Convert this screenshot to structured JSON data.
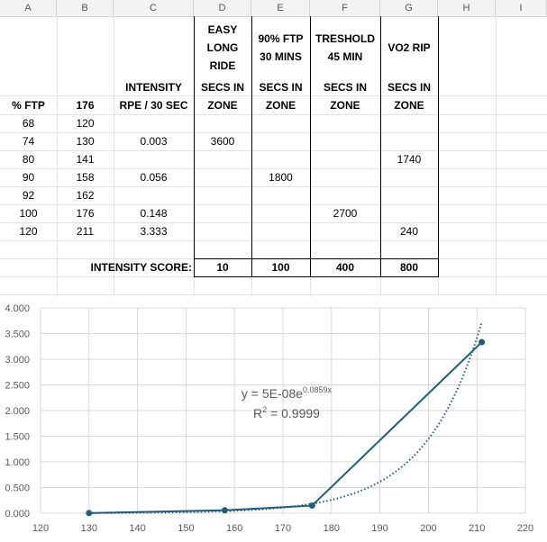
{
  "columns": [
    "A",
    "B",
    "C",
    "D",
    "E",
    "F",
    "G",
    "H",
    "I"
  ],
  "headers": {
    "d": [
      "EASY",
      "LONG",
      "RIDE"
    ],
    "e": [
      "90% FTP",
      "30 MINS"
    ],
    "f": [
      "TRESHOLD",
      "45 MIN"
    ],
    "g": "VO2 RIP",
    "a": "% FTP",
    "b": "176",
    "c1": "INTENSITY",
    "c2": "RPE / 30 SEC",
    "secs1": "SECS IN",
    "secs2": "ZONE"
  },
  "rows": [
    {
      "a": "68",
      "b": "120",
      "c": "",
      "d": "",
      "e": "",
      "f": "",
      "g": ""
    },
    {
      "a": "74",
      "b": "130",
      "c": "0.003",
      "d": "3600",
      "e": "",
      "f": "",
      "g": ""
    },
    {
      "a": "80",
      "b": "141",
      "c": "",
      "d": "",
      "e": "",
      "f": "",
      "g": "1740"
    },
    {
      "a": "90",
      "b": "158",
      "c": "0.056",
      "d": "",
      "e": "1800",
      "f": "",
      "g": ""
    },
    {
      "a": "92",
      "b": "162",
      "c": "",
      "d": "",
      "e": "",
      "f": "",
      "g": ""
    },
    {
      "a": "100",
      "b": "176",
      "c": "0.148",
      "d": "",
      "e": "",
      "f": "2700",
      "g": ""
    },
    {
      "a": "120",
      "b": "211",
      "c": "3.333",
      "d": "",
      "e": "",
      "f": "",
      "g": "240"
    }
  ],
  "score": {
    "label": "INTENSITY SCORE:",
    "d": "10",
    "e": "100",
    "f": "400",
    "g": "800"
  },
  "chart_data": {
    "type": "scatter",
    "x": [
      130,
      158,
      176,
      211
    ],
    "y": [
      0.003,
      0.056,
      0.148,
      3.333
    ],
    "xlim": [
      120,
      220
    ],
    "ylim": [
      0,
      4
    ],
    "xticks": [
      "120",
      "130",
      "140",
      "150",
      "160",
      "170",
      "180",
      "190",
      "200",
      "210",
      "220"
    ],
    "yticks": [
      "0.000",
      "0.500",
      "1.000",
      "1.500",
      "2.000",
      "2.500",
      "3.000",
      "3.500",
      "4.000"
    ],
    "grid": true,
    "trendline": {
      "type": "exponential",
      "a": 5e-08,
      "b": 0.0859
    },
    "equation_label": "y = 5E-08e",
    "equation_exp": "0.0859x",
    "r2_label": "R",
    "r2_sup": "2",
    "r2_value": " = 0.9999",
    "colors": {
      "series": "#1f5f7a",
      "grid": "#d9d9d9",
      "text": "#595959"
    }
  }
}
